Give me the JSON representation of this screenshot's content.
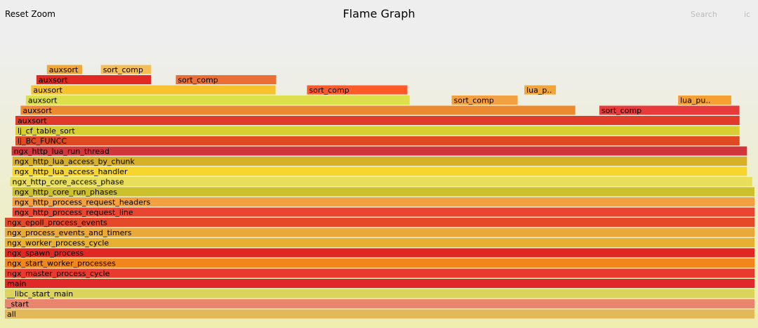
{
  "header": {
    "reset_zoom": "Reset Zoom",
    "title": "Flame Graph",
    "search": "Search",
    "ic": "ic"
  },
  "chart_data": {
    "type": "flame",
    "title": "Flame Graph",
    "x_unit": "fraction of total samples",
    "frames": [
      {
        "name": "all",
        "depth": 0,
        "start": 0.0,
        "width": 1.0,
        "color": "#e2b858",
        "label": "all"
      },
      {
        "name": "_start",
        "depth": 1,
        "start": 0.0,
        "width": 1.0,
        "color": "#e8856c",
        "label": "_start"
      },
      {
        "name": "__libc_start_main",
        "depth": 2,
        "start": 0.0,
        "width": 1.0,
        "color": "#dcd45a",
        "label": "__libc_start_main"
      },
      {
        "name": "main",
        "depth": 3,
        "start": 0.0,
        "width": 1.0,
        "color": "#e02a2a",
        "label": "main"
      },
      {
        "name": "ngx_master_process_cycle",
        "depth": 4,
        "start": 0.0,
        "width": 1.0,
        "color": "#e83a2e",
        "label": "ngx_master_process_cycle"
      },
      {
        "name": "ngx_start_worker_processes",
        "depth": 5,
        "start": 0.0,
        "width": 1.0,
        "color": "#f0861c",
        "label": "ngx_start_worker_processes"
      },
      {
        "name": "ngx_spawn_process",
        "depth": 6,
        "start": 0.0,
        "width": 1.0,
        "color": "#e02822",
        "label": "ngx_spawn_process"
      },
      {
        "name": "ngx_worker_process_cycle",
        "depth": 7,
        "start": 0.0,
        "width": 1.0,
        "color": "#e8b030",
        "label": "ngx_worker_process_cycle"
      },
      {
        "name": "ngx_process_events_and_timers",
        "depth": 8,
        "start": 0.0,
        "width": 1.0,
        "color": "#e8a83a",
        "label": "ngx_process_events_and_timers"
      },
      {
        "name": "ngx_epoll_process_events",
        "depth": 9,
        "start": 0.0,
        "width": 1.0,
        "color": "#e44a2a",
        "label": "ngx_epoll_process_events"
      },
      {
        "name": "ngx_http_process_request_line",
        "depth": 10,
        "start": 0.01,
        "width": 0.99,
        "color": "#ea4530",
        "label": "ngx_http_process_request_line"
      },
      {
        "name": "ngx_http_process_request_headers",
        "depth": 11,
        "start": 0.01,
        "width": 0.99,
        "color": "#f2a040",
        "label": "ngx_http_process_request_headers"
      },
      {
        "name": "ngx_http_core_run_phases",
        "depth": 12,
        "start": 0.01,
        "width": 0.99,
        "color": "#cdc02e",
        "label": "ngx_http_core_run_phases"
      },
      {
        "name": "ngx_http_core_access_phase",
        "depth": 13,
        "start": 0.007,
        "width": 0.99,
        "color": "#e8de5a",
        "label": "ngx_http_core_access_phase"
      },
      {
        "name": "ngx_http_lua_access_handler",
        "depth": 14,
        "start": 0.01,
        "width": 0.98,
        "color": "#f5d52e",
        "label": "ngx_http_lua_access_handler"
      },
      {
        "name": "ngx_http_lua_access_by_chunk",
        "depth": 15,
        "start": 0.01,
        "width": 0.98,
        "color": "#d8b028",
        "label": "ngx_http_lua_access_by_chunk"
      },
      {
        "name": "ngx_http_lua_run_thread",
        "depth": 16,
        "start": 0.009,
        "width": 0.981,
        "color": "#d0363a",
        "label": "ngx_http_lua_run_thread"
      },
      {
        "name": "lj_BC_FUNCC",
        "depth": 17,
        "start": 0.014,
        "width": 0.966,
        "color": "#e04a22",
        "label": "lj_BC_FUNCC"
      },
      {
        "name": "lj_cf_table_sort",
        "depth": 18,
        "start": 0.014,
        "width": 0.966,
        "color": "#d8d030",
        "label": "lj_cf_table_sort"
      },
      {
        "name": "auxsort",
        "depth": 19,
        "start": 0.014,
        "width": 0.966,
        "color": "#e03a2a",
        "label": "auxsort"
      },
      {
        "name": "auxsort",
        "depth": 20,
        "start": 0.021,
        "width": 0.74,
        "color": "#ec8a30",
        "label": "auxsort"
      },
      {
        "name": "sort_comp",
        "depth": 20,
        "start": 0.793,
        "width": 0.187,
        "color": "#e83a3a",
        "label": "sort_comp"
      },
      {
        "name": "auxsort",
        "depth": 21,
        "start": 0.028,
        "width": 0.512,
        "color": "#dce04a",
        "label": "auxsort"
      },
      {
        "name": "lua_pu..",
        "depth": 21,
        "start": 0.898,
        "width": 0.071,
        "color": "#f5a030",
        "label": "lua_pu.."
      },
      {
        "name": "sort_comp",
        "depth": 21,
        "start": 0.596,
        "width": 0.088,
        "color": "#f4a040",
        "label": "sort_comp"
      },
      {
        "name": "auxsort",
        "depth": 22,
        "start": 0.035,
        "width": 0.326,
        "color": "#f6c22e",
        "label": "auxsort"
      },
      {
        "name": "sort_comp",
        "depth": 22,
        "start": 0.403,
        "width": 0.134,
        "color": "#ff5a2a",
        "label": "sort_comp"
      },
      {
        "name": "lua_p..",
        "depth": 22,
        "start": 0.693,
        "width": 0.042,
        "color": "#f4a538",
        "label": "lua_p.."
      },
      {
        "name": "auxsort",
        "depth": 23,
        "start": 0.042,
        "width": 0.153,
        "color": "#e02a22",
        "label": "auxsort"
      },
      {
        "name": "sort_comp",
        "depth": 23,
        "start": 0.228,
        "width": 0.134,
        "color": "#eb6e35",
        "label": "sort_comp"
      },
      {
        "name": "auxsort",
        "depth": 24,
        "start": 0.056,
        "width": 0.047,
        "color": "#f0a838",
        "label": "auxsort"
      },
      {
        "name": "sort_comp",
        "depth": 24,
        "start": 0.128,
        "width": 0.067,
        "color": "#f4be58",
        "label": "sort_comp"
      }
    ]
  }
}
